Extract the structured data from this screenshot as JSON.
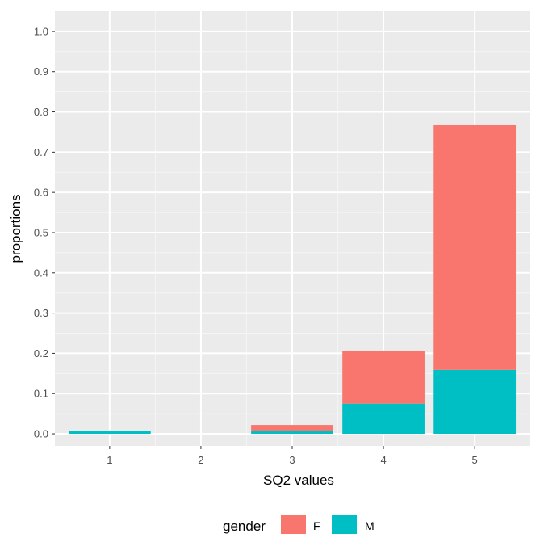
{
  "chart_data": {
    "type": "bar",
    "stacked": true,
    "title": "",
    "xlabel": "SQ2 values",
    "ylabel": "proportions",
    "categories": [
      "1",
      "2",
      "3",
      "4",
      "5"
    ],
    "ylim": [
      -0.03,
      1.05
    ],
    "yticks": [
      "0.0",
      "0.1",
      "0.2",
      "0.3",
      "0.4",
      "0.5",
      "0.6",
      "0.7",
      "0.8",
      "0.9",
      "1.0"
    ],
    "grid": true,
    "legend_position": "bottom",
    "legend_title": "gender",
    "series": [
      {
        "name": "F",
        "color": "#F8766D",
        "values": [
          0.0,
          0.0,
          0.014,
          0.131,
          0.608
        ]
      },
      {
        "name": "M",
        "color": "#00BFC4",
        "values": [
          0.008,
          0.0,
          0.008,
          0.075,
          0.159
        ]
      }
    ]
  }
}
